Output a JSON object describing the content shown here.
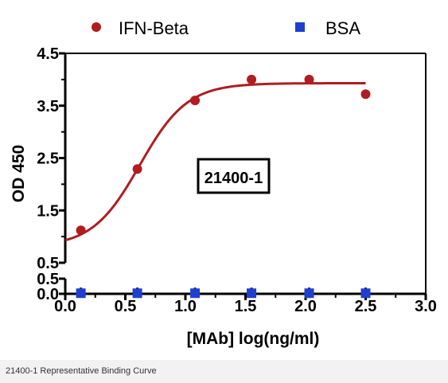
{
  "caption": "21400-1 Representative Binding Curve",
  "colors": {
    "ifn_beta": "#b01c20",
    "bsa": "#1f3fd0",
    "axis": "#000000"
  },
  "chart_data": {
    "type": "scatter",
    "title": "",
    "annotation": "21400-1",
    "xlabel": "[MAb] log(ng/ml)",
    "ylabel": "OD 450",
    "xlim": [
      0.0,
      3.0
    ],
    "ylim": [
      0.0,
      4.5
    ],
    "axis_break": "y-axis broken between 0.5 and 0.5 (lower and upper segments)",
    "x_ticks": [
      "0.0",
      "0.5",
      "1.0",
      "1.5",
      "2.0",
      "2.5",
      "3.0"
    ],
    "y_ticks_upper": [
      "0.5",
      "1.5",
      "2.5",
      "3.5",
      "4.5"
    ],
    "y_ticks_lower": [
      "0.0",
      "0.5"
    ],
    "legend_position": "top",
    "grid": false,
    "series": [
      {
        "name": "IFN-Beta",
        "marker": "circle",
        "x": [
          0.13,
          0.6,
          1.08,
          1.55,
          2.03,
          2.5
        ],
        "y": [
          1.12,
          2.29,
          3.6,
          4.0,
          4.0,
          3.72
        ],
        "fit_curve": {
          "type": "sigmoidal",
          "bottom": 0.8,
          "top": 3.93,
          "logEC50": 0.62,
          "hill_slope": 2.2,
          "x_range": [
            0.0,
            2.5
          ]
        }
      },
      {
        "name": "BSA",
        "marker": "square",
        "x": [
          0.13,
          0.6,
          1.08,
          1.55,
          2.03,
          2.5
        ],
        "y": [
          0.02,
          0.02,
          0.02,
          0.02,
          0.02,
          0.02
        ]
      }
    ]
  }
}
